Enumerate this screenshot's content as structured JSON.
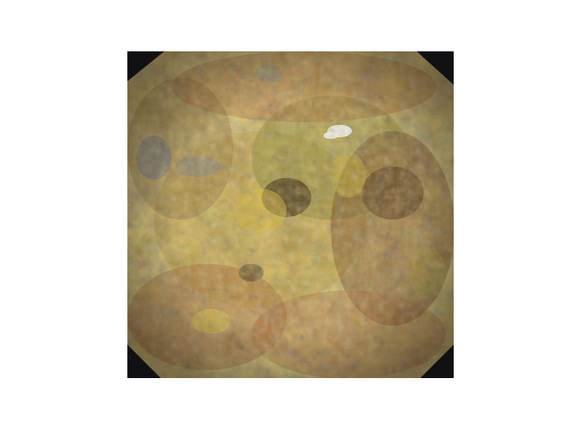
{
  "image": {
    "subject": "generated-endoscopic-texture",
    "palette": {
      "background": "#ffffff",
      "corner": "#111114",
      "base_brown": "#8a5a2b",
      "olive": "#7c7a2a",
      "ochre": "#b48f2a",
      "rust": "#9a4a2a",
      "shadow": "#3b2a16",
      "highlight": "#f2f2f2",
      "blue_tint": "#5a6a9a"
    }
  }
}
